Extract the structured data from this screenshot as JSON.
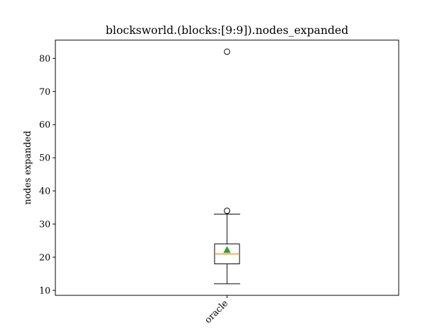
{
  "chart_data": {
    "type": "box",
    "title": "blocksworld.(blocks:[9:9]).nodes_expanded",
    "xlabel": "",
    "ylabel": "nodes expanded",
    "ylim": [
      8.5,
      85.5
    ],
    "yticks": [
      10,
      20,
      30,
      40,
      50,
      60,
      70,
      80
    ],
    "categories": [
      "oracle"
    ],
    "boxes": [
      {
        "category": "oracle",
        "whisker_low": 12,
        "q1": 18,
        "median": 21,
        "q3": 24,
        "whisker_high": 33,
        "mean": 22.2,
        "outliers": [
          34,
          82
        ]
      }
    ],
    "grid": false,
    "colors": {
      "box": "#000000",
      "median": "#ff7f0e",
      "mean": "#2ca02c"
    }
  }
}
